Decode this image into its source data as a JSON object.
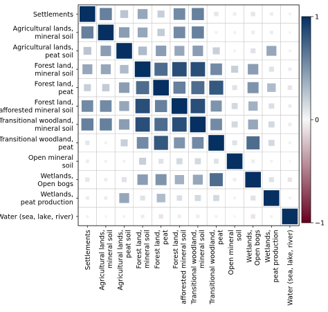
{
  "chart_data": {
    "type": "heatmap",
    "title": "",
    "xlabel": "",
    "ylabel": "",
    "categories": [
      "Settlements",
      "Agricultural lands,\nmineral soil",
      "Agricultural lands,\npeat soil",
      "Forest land,\nmineral soil",
      "Forest land,\npeat",
      "Forest land,\nafforested mineral soil",
      "Transitional woodland,\nmineral soil",
      "Transitional woodland,\npeat",
      "Open mineral\nsoil",
      "Wetlands,\nOpen bogs",
      "Wetlands,\npeat production",
      "Water (sea, lake, river)"
    ],
    "values": [
      [
        1.0,
        0.6,
        0.25,
        0.4,
        0.2,
        0.55,
        0.6,
        0.08,
        0.05,
        0.08,
        0.05,
        0.03
      ],
      [
        0.6,
        1.0,
        0.45,
        0.4,
        0.22,
        0.55,
        0.6,
        0.03,
        0.03,
        0.05,
        0.05,
        0.02
      ],
      [
        0.25,
        0.45,
        1.0,
        0.3,
        0.45,
        0.4,
        0.45,
        0.2,
        0.03,
        0.1,
        0.4,
        0.03
      ],
      [
        0.4,
        0.4,
        0.3,
        1.0,
        0.7,
        0.85,
        0.85,
        0.55,
        0.2,
        0.45,
        0.1,
        0.05
      ],
      [
        0.2,
        0.22,
        0.45,
        0.7,
        1.0,
        0.6,
        0.7,
        0.8,
        0.1,
        0.5,
        0.3,
        -0.08
      ],
      [
        0.55,
        0.55,
        0.4,
        0.85,
        0.6,
        1.0,
        0.85,
        0.5,
        0.15,
        0.35,
        0.12,
        0.05
      ],
      [
        0.6,
        0.6,
        0.45,
        0.85,
        0.7,
        0.85,
        1.0,
        0.55,
        0.15,
        0.4,
        0.15,
        0.05
      ],
      [
        0.08,
        0.03,
        0.2,
        0.55,
        0.8,
        0.5,
        0.55,
        1.0,
        0.1,
        0.7,
        0.15,
        0.03
      ],
      [
        0.05,
        0.03,
        0.03,
        0.2,
        0.1,
        0.15,
        0.15,
        0.1,
        1.0,
        0.05,
        0.03,
        0.02
      ],
      [
        0.08,
        0.05,
        0.1,
        0.45,
        0.5,
        0.35,
        0.4,
        0.7,
        0.05,
        1.0,
        0.1,
        -0.08
      ],
      [
        0.05,
        0.05,
        0.4,
        0.1,
        0.3,
        0.12,
        0.15,
        0.15,
        0.03,
        0.1,
        1.0,
        0.03
      ],
      [
        0.03,
        0.02,
        0.03,
        0.05,
        -0.08,
        0.05,
        0.05,
        0.03,
        0.02,
        -0.08,
        0.03,
        1.0
      ]
    ],
    "colorbar": {
      "min": -1,
      "max": 1,
      "ticks": [
        "1",
        "0",
        "−1"
      ]
    },
    "colors": {
      "positive": "#053061",
      "neutral": "#f7f7f7",
      "negative": "#67001f"
    },
    "grid": true,
    "marker": "square, size proportional to |r|"
  }
}
